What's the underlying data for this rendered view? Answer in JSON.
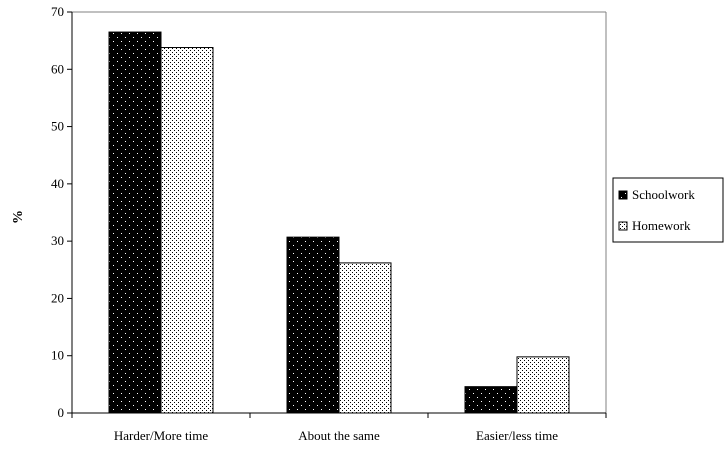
{
  "chart_data": {
    "type": "bar",
    "categories": [
      "Harder/More time",
      "About the same",
      "Easier/less time"
    ],
    "series": [
      {
        "name": "Schoolwork",
        "values": [
          66.5,
          30.7,
          4.6
        ],
        "color": "#000000",
        "pattern": "dark-dots"
      },
      {
        "name": "Homework",
        "values": [
          63.8,
          26.2,
          9.8
        ],
        "color": "#ffffff",
        "pattern": "light-dots"
      }
    ],
    "title": "",
    "xlabel": "",
    "ylabel": "%",
    "ylim": [
      0,
      70
    ],
    "yticks": [
      0,
      10,
      20,
      30,
      40,
      50,
      60,
      70
    ],
    "grid": false,
    "legend": "right"
  }
}
